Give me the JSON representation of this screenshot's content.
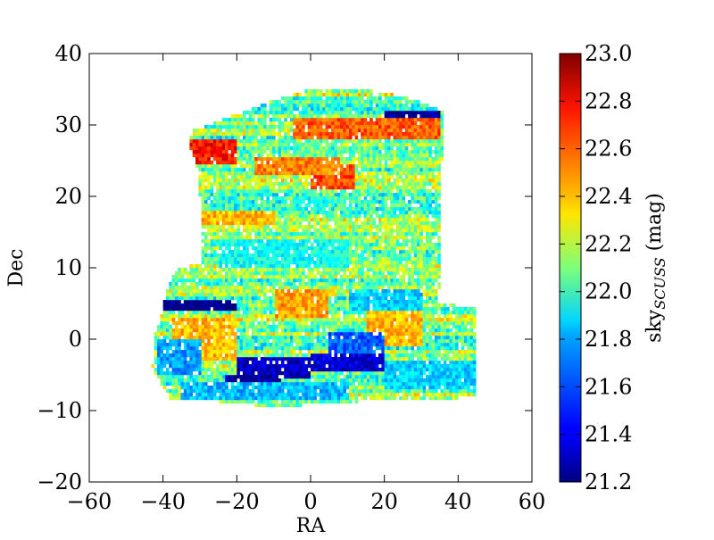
{
  "chart_data": {
    "type": "heatmap",
    "xlabel": "RA",
    "ylabel": "Dec",
    "xlim": [
      -60,
      60
    ],
    "ylim": [
      -20,
      40
    ],
    "xticks": [
      -60,
      -40,
      -20,
      0,
      20,
      40,
      60
    ],
    "yticks": [
      -20,
      -10,
      0,
      10,
      20,
      30,
      40
    ],
    "xtick_labels": [
      "−60",
      "−40",
      "−20",
      "0",
      "20",
      "40",
      "60"
    ],
    "ytick_labels": [
      "−20",
      "−10",
      "0",
      "10",
      "20",
      "30",
      "40"
    ],
    "grid": false,
    "colorbar": {
      "label": "sky",
      "label_subscript": "SCUSS",
      "label_unit": " (mag)",
      "colormap": "jet",
      "range": [
        21.2,
        23.0
      ],
      "ticks": [
        21.2,
        21.4,
        21.6,
        21.8,
        22.0,
        22.2,
        22.4,
        22.6,
        22.8,
        23.0
      ],
      "tick_labels": [
        "21.2",
        "21.4",
        "21.6",
        "21.8",
        "22.0",
        "22.2",
        "22.4",
        "22.6",
        "22.8",
        "23.0"
      ]
    },
    "base_value": 22.1,
    "footprint": [
      [
        -33,
        29
      ],
      [
        -20,
        31.5
      ],
      [
        -10,
        33.5
      ],
      [
        0,
        35
      ],
      [
        10,
        35.2
      ],
      [
        20,
        34.5
      ],
      [
        28,
        33.5
      ],
      [
        36,
        32
      ],
      [
        35,
        15
      ],
      [
        35,
        7
      ],
      [
        34,
        7
      ],
      [
        34,
        5
      ],
      [
        45,
        4.5
      ],
      [
        45,
        -8
      ],
      [
        35,
        -8.5
      ],
      [
        20,
        -8.5
      ],
      [
        -10,
        -9.5
      ],
      [
        -30,
        -8.5
      ],
      [
        -38,
        -8.5
      ],
      [
        -43,
        -4
      ],
      [
        -42,
        1
      ],
      [
        -40,
        5
      ],
      [
        -38,
        8
      ],
      [
        -36,
        10
      ],
      [
        -30,
        10.5
      ],
      [
        -30,
        20
      ],
      [
        -31,
        25
      ],
      [
        -33,
        27
      ]
    ],
    "regions": [
      {
        "ra": [
          -33,
          -20
        ],
        "dec": [
          24.5,
          28
        ],
        "value": 22.75
      },
      {
        "ra": [
          -5,
          35
        ],
        "dec": [
          28,
          31
        ],
        "value": 22.62
      },
      {
        "ra": [
          0,
          12
        ],
        "dec": [
          21,
          24.5
        ],
        "value": 22.65
      },
      {
        "ra": [
          -15,
          8
        ],
        "dec": [
          23,
          25.5
        ],
        "value": 22.55
      },
      {
        "ra": [
          -30,
          -10
        ],
        "dec": [
          16,
          18
        ],
        "value": 22.45
      },
      {
        "ra": [
          -38,
          -20
        ],
        "dec": [
          -3,
          3
        ],
        "value": 22.45
      },
      {
        "ra": [
          -10,
          5
        ],
        "dec": [
          3,
          7
        ],
        "value": 22.5
      },
      {
        "ra": [
          15,
          30
        ],
        "dec": [
          -1,
          4
        ],
        "value": 22.45
      },
      {
        "ra": [
          -40,
          -20
        ],
        "dec": [
          4,
          5.5
        ],
        "value": 21.2
      },
      {
        "ra": [
          -20,
          0
        ],
        "dec": [
          -5.5,
          -2.5
        ],
        "value": 21.3
      },
      {
        "ra": [
          0,
          20
        ],
        "dec": [
          -4.5,
          -2
        ],
        "value": 21.35
      },
      {
        "ra": [
          -23,
          -8
        ],
        "dec": [
          -7,
          -5
        ],
        "value": 21.25
      },
      {
        "ra": [
          5,
          20
        ],
        "dec": [
          -2,
          1
        ],
        "value": 21.6
      },
      {
        "ra": [
          -35,
          10
        ],
        "dec": [
          -8.5,
          -6
        ],
        "value": 21.75
      },
      {
        "ra": [
          20,
          45
        ],
        "dec": [
          -7,
          -3
        ],
        "value": 21.8
      },
      {
        "ra": [
          20,
          35
        ],
        "dec": [
          31,
          32
        ],
        "value": 21.25
      },
      {
        "ra": [
          -5,
          5
        ],
        "dec": [
          18,
          20
        ],
        "value": 21.9
      },
      {
        "ra": [
          -25,
          10
        ],
        "dec": [
          10,
          14
        ],
        "value": 21.9
      },
      {
        "ra": [
          -42,
          -30
        ],
        "dec": [
          -5,
          0
        ],
        "value": 21.7
      },
      {
        "ra": [
          10,
          30
        ],
        "dec": [
          4,
          7
        ],
        "value": 21.8
      }
    ]
  }
}
